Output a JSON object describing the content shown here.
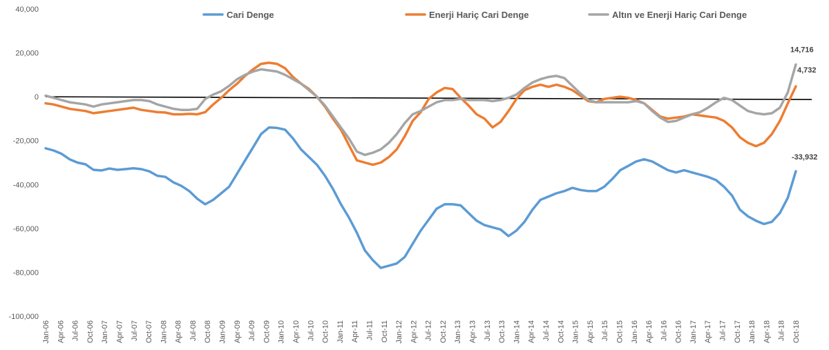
{
  "chart_data": {
    "type": "line",
    "ylim": [
      -100000,
      40000
    ],
    "y_ticks": [
      "40,000",
      "20,000",
      "0",
      "-20,000",
      "-40,000",
      "-60,000",
      "-80,000",
      "-100,000"
    ],
    "y_tick_values": [
      40000,
      20000,
      0,
      -20000,
      -40000,
      -60000,
      -80000,
      -100000
    ],
    "x_ticks": [
      "Jan-06",
      "Apr-06",
      "Jul-06",
      "Oct-06",
      "Jan-07",
      "Apr-07",
      "Jul-07",
      "Oct-07",
      "Jan-08",
      "Apr-08",
      "Jul-08",
      "Oct-08",
      "Jan-09",
      "Apr-09",
      "Jul-09",
      "Oct-09",
      "Jan-10",
      "Apr-10",
      "Jul-10",
      "Oct-10",
      "Jan-11",
      "Apr-11",
      "Jul-11",
      "Oct-11",
      "Jan-12",
      "Apr-12",
      "Jul-12",
      "Oct-12",
      "Jan-13",
      "Apr-13",
      "Jul-13",
      "Oct-13",
      "Jan-14",
      "Apr-14",
      "Jul-14",
      "Oct-14",
      "Jan-15",
      "Apr-15",
      "Jul-15",
      "Oct-15",
      "Jan-16",
      "Apr-16",
      "Jul-16",
      "Oct-16",
      "Jan-17",
      "Apr-17",
      "Jul-17",
      "Oct-17",
      "Jan-18",
      "Apr-18",
      "Jul-18",
      "Oct-18"
    ],
    "grid": false,
    "legend_position": "top",
    "series": [
      {
        "name": "Cari Denge",
        "color": "#5B9BD5",
        "values": [
          -23500,
          -24500,
          -26000,
          -28500,
          -30000,
          -30800,
          -33300,
          -33600,
          -32700,
          -33300,
          -33000,
          -32600,
          -33000,
          -34000,
          -36000,
          -36500,
          -39000,
          -40600,
          -43000,
          -46500,
          -49000,
          -47000,
          -44000,
          -41000,
          -35000,
          -29000,
          -23000,
          -17000,
          -14000,
          -14200,
          -15000,
          -19000,
          -24000,
          -27500,
          -31000,
          -36000,
          -42000,
          -49000,
          -55000,
          -62000,
          -70000,
          -74500,
          -78000,
          -77000,
          -76000,
          -73000,
          -67000,
          -61000,
          -56000,
          -51000,
          -49000,
          -49000,
          -49500,
          -53000,
          -56500,
          -58500,
          -59500,
          -60500,
          -63500,
          -61000,
          -57000,
          -51500,
          -47000,
          -45500,
          -44000,
          -43000,
          -41500,
          -42500,
          -43000,
          -43000,
          -41000,
          -37500,
          -33500,
          -31500,
          -29500,
          -28500,
          -29500,
          -31500,
          -33500,
          -34500,
          -33500,
          -34500,
          -35500,
          -36500,
          -38000,
          -41000,
          -45000,
          -51500,
          -54500,
          -56500,
          -58000,
          -57000,
          -53000,
          -46000,
          -33932
        ]
      },
      {
        "name": "Enerji Hariç Cari Denge",
        "color": "#ED7D31",
        "values": [
          -3000,
          -3500,
          -4500,
          -5500,
          -6000,
          -6500,
          -7500,
          -7000,
          -6500,
          -6000,
          -5500,
          -5000,
          -6000,
          -6500,
          -7000,
          -7200,
          -8000,
          -8000,
          -7800,
          -8000,
          -7000,
          -3500,
          -500,
          3000,
          6000,
          9500,
          12500,
          15000,
          15500,
          15000,
          13000,
          9000,
          6000,
          3500,
          0,
          -4500,
          -10000,
          -15000,
          -22000,
          -29000,
          -30000,
          -31000,
          -30000,
          -27500,
          -24000,
          -18000,
          -11000,
          -7000,
          -1000,
          2000,
          4000,
          3500,
          -500,
          -4000,
          -8000,
          -10000,
          -14000,
          -11500,
          -6500,
          -1000,
          3000,
          4500,
          5500,
          4500,
          5500,
          4500,
          3000,
          500,
          -2000,
          -2500,
          -1000,
          -500,
          0,
          -500,
          -1500,
          -3000,
          -6000,
          -9000,
          -10000,
          -9500,
          -9000,
          -8000,
          -8500,
          -9000,
          -9500,
          -11000,
          -14000,
          -18500,
          -21000,
          -22500,
          -21000,
          -17000,
          -11000,
          -3000,
          4732
        ]
      },
      {
        "name": "Altın ve Enerji Hariç Cari Denge",
        "color": "#A5A5A5",
        "values": [
          500,
          -500,
          -1500,
          -2500,
          -3000,
          -3500,
          -4500,
          -3500,
          -3000,
          -2500,
          -2000,
          -1500,
          -1500,
          -2000,
          -3500,
          -4500,
          -5500,
          -6000,
          -6000,
          -5500,
          -1000,
          1000,
          2500,
          5000,
          8000,
          10000,
          11500,
          12500,
          12000,
          11500,
          10000,
          8000,
          6000,
          3000,
          0,
          -4000,
          -9000,
          -14000,
          -19000,
          -25000,
          -26500,
          -25500,
          -24000,
          -21000,
          -17000,
          -12000,
          -8000,
          -6500,
          -4500,
          -2500,
          -1500,
          -1500,
          -1000,
          -1500,
          -1500,
          -1500,
          -2000,
          -1500,
          -500,
          1000,
          4000,
          6500,
          8000,
          9000,
          9500,
          8500,
          5000,
          1500,
          -1500,
          -2500,
          -2500,
          -2500,
          -2500,
          -2500,
          -2000,
          -3000,
          -6500,
          -9500,
          -11500,
          -11000,
          -9500,
          -8000,
          -7000,
          -5000,
          -2500,
          -500,
          -1500,
          -4000,
          -6500,
          -7500,
          -8000,
          -7500,
          -5000,
          2000,
          14716
        ]
      }
    ],
    "data_labels": [
      {
        "series": 0,
        "text": "-33,932"
      },
      {
        "series": 1,
        "text": "4,732"
      },
      {
        "series": 2,
        "text": "14,716"
      }
    ]
  }
}
